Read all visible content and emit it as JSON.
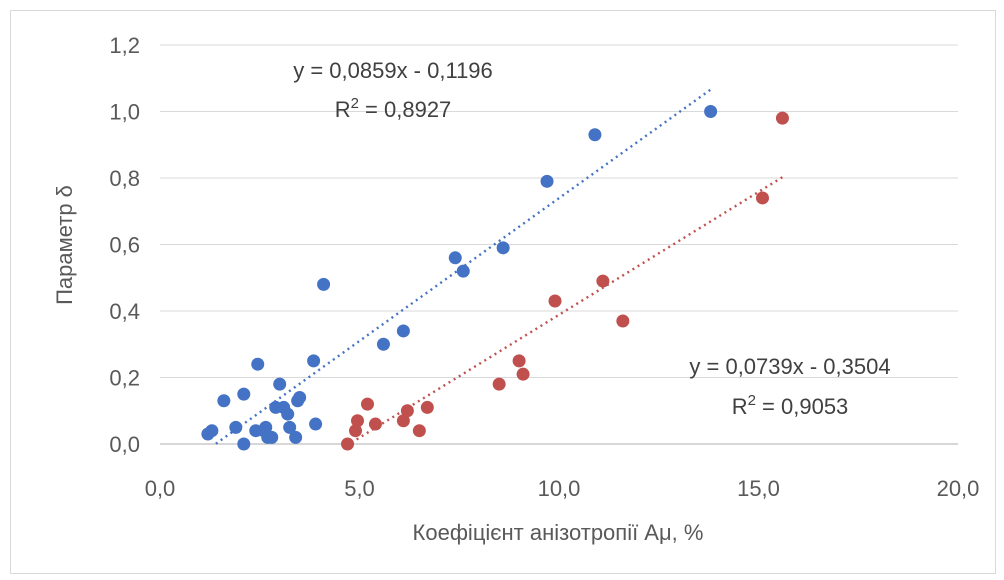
{
  "chart_data": {
    "type": "scatter",
    "title": "",
    "xlabel": "Коефіцієнт анізотропії Aμ, %",
    "ylabel": "Параметр δ",
    "xlim": [
      0,
      20
    ],
    "ylim": [
      0,
      1.2
    ],
    "x_ticks": [
      "0,0",
      "5,0",
      "10,0",
      "15,0",
      "20,0"
    ],
    "y_ticks": [
      "0,0",
      "0,2",
      "0,4",
      "0,6",
      "0,8",
      "1,0",
      "1,2"
    ],
    "grid": true,
    "legend": "none",
    "series": [
      {
        "color": "#4472c4",
        "trendline": {
          "slope": 0.0859,
          "intercept": -0.1196,
          "x_range": [
            1.4,
            13.8
          ]
        },
        "equation": "y = 0,0859x - 0,1196",
        "r2_label": "R",
        "r2_value": " = 0,8927",
        "points": [
          [
            1.2,
            0.03
          ],
          [
            1.3,
            0.04
          ],
          [
            1.6,
            0.13
          ],
          [
            1.9,
            0.05
          ],
          [
            2.1,
            0.15
          ],
          [
            2.1,
            0.0
          ],
          [
            2.4,
            0.04
          ],
          [
            2.45,
            0.24
          ],
          [
            2.6,
            0.04
          ],
          [
            2.65,
            0.05
          ],
          [
            2.7,
            0.02
          ],
          [
            2.8,
            0.02
          ],
          [
            2.9,
            0.11
          ],
          [
            3.0,
            0.18
          ],
          [
            3.1,
            0.11
          ],
          [
            3.2,
            0.09
          ],
          [
            3.25,
            0.05
          ],
          [
            3.4,
            0.02
          ],
          [
            3.45,
            0.13
          ],
          [
            3.5,
            0.14
          ],
          [
            3.85,
            0.25
          ],
          [
            3.9,
            0.06
          ],
          [
            4.1,
            0.48
          ],
          [
            5.6,
            0.3
          ],
          [
            6.1,
            0.34
          ],
          [
            7.4,
            0.56
          ],
          [
            7.6,
            0.52
          ],
          [
            8.6,
            0.59
          ],
          [
            9.7,
            0.79
          ],
          [
            10.9,
            0.93
          ],
          [
            13.8,
            1.0
          ]
        ]
      },
      {
        "color": "#c0504d",
        "trendline": {
          "slope": 0.0739,
          "intercept": -0.3504,
          "x_range": [
            4.8,
            15.6
          ]
        },
        "equation": "y = 0,0739x - 0,3504",
        "r2_label": "R",
        "r2_value": " = 0,9053",
        "points": [
          [
            4.7,
            0.0
          ],
          [
            4.9,
            0.04
          ],
          [
            4.95,
            0.07
          ],
          [
            5.2,
            0.12
          ],
          [
            5.4,
            0.06
          ],
          [
            6.1,
            0.07
          ],
          [
            6.2,
            0.1
          ],
          [
            6.5,
            0.04
          ],
          [
            6.7,
            0.11
          ],
          [
            8.5,
            0.18
          ],
          [
            9.0,
            0.25
          ],
          [
            9.1,
            0.21
          ],
          [
            9.9,
            0.43
          ],
          [
            11.1,
            0.49
          ],
          [
            11.6,
            0.37
          ],
          [
            15.1,
            0.74
          ],
          [
            15.6,
            0.98
          ]
        ]
      }
    ]
  }
}
